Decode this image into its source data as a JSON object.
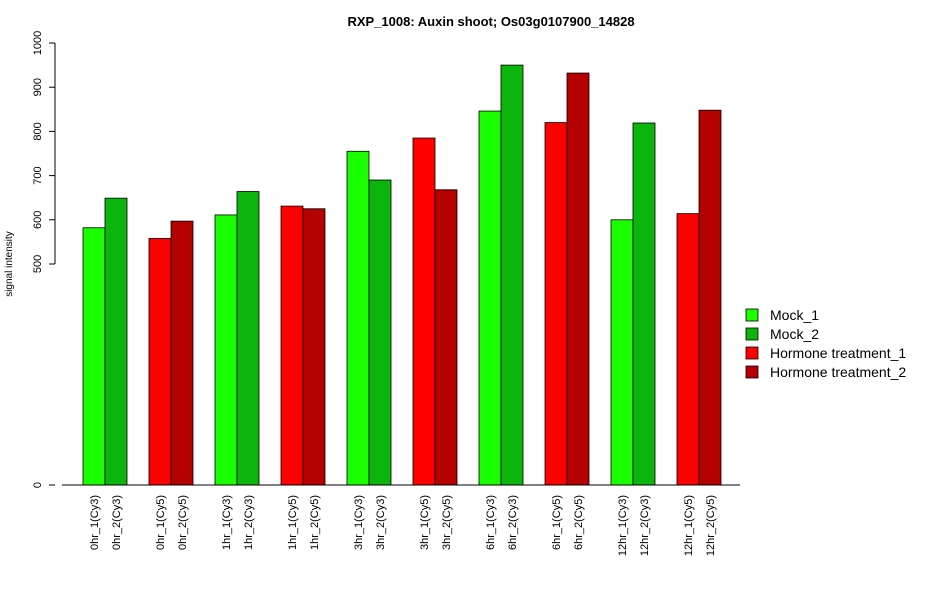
{
  "chart_data": {
    "type": "bar",
    "title": "RXP_1008: Auxin shoot; Os03g0107900_14828",
    "ylabel": "signal intensity",
    "xlabel": "",
    "y_ticks": [
      0,
      500,
      600,
      700,
      800,
      900,
      1000
    ],
    "ylim_note": "axis broken between 0 and 500",
    "grid": false,
    "legend_position": "right",
    "series_legend": [
      {
        "name": "Mock_1",
        "color": "#19ff00"
      },
      {
        "name": "Mock_2",
        "color": "#0bb50b"
      },
      {
        "name": "Hormone treatment_1",
        "color": "#ff0000"
      },
      {
        "name": "Hormone treatment_2",
        "color": "#b50000"
      }
    ],
    "bars": [
      {
        "label": "0hr_1(Cy3)",
        "value": 582,
        "series": 0
      },
      {
        "label": "0hr_2(Cy3)",
        "value": 649,
        "series": 1
      },
      {
        "label": "0hr_1(Cy5)",
        "value": 558,
        "series": 2
      },
      {
        "label": "0hr_2(Cy5)",
        "value": 597,
        "series": 3
      },
      {
        "label": "1hr_1(Cy3)",
        "value": 611,
        "series": 0
      },
      {
        "label": "1hr_2(Cy3)",
        "value": 664,
        "series": 1
      },
      {
        "label": "1hr_1(Cy5)",
        "value": 631,
        "series": 2
      },
      {
        "label": "1hr_2(Cy5)",
        "value": 625,
        "series": 3
      },
      {
        "label": "3hr_1(Cy3)",
        "value": 755,
        "series": 0
      },
      {
        "label": "3hr_2(Cy3)",
        "value": 690,
        "series": 1
      },
      {
        "label": "3hr_1(Cy5)",
        "value": 785,
        "series": 2
      },
      {
        "label": "3hr_2(Cy5)",
        "value": 668,
        "series": 3
      },
      {
        "label": "6hr_1(Cy3)",
        "value": 846,
        "series": 0
      },
      {
        "label": "6hr_2(Cy3)",
        "value": 950,
        "series": 1
      },
      {
        "label": "6hr_1(Cy5)",
        "value": 820,
        "series": 2
      },
      {
        "label": "6hr_2(Cy5)",
        "value": 932,
        "series": 3
      },
      {
        "label": "12hr_1(Cy3)",
        "value": 600,
        "series": 0
      },
      {
        "label": "12hr_2(Cy3)",
        "value": 819,
        "series": 1
      },
      {
        "label": "12hr_1(Cy5)",
        "value": 614,
        "series": 2
      },
      {
        "label": "12hr_2(Cy5)",
        "value": 848,
        "series": 3
      }
    ]
  }
}
